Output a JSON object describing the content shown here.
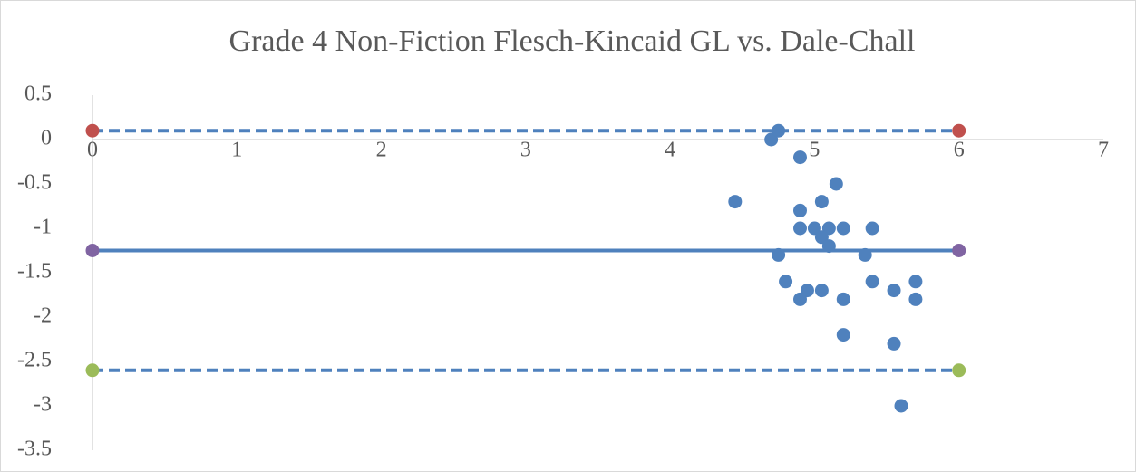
{
  "chart_data": {
    "type": "scatter",
    "title": "Grade 4 Non-Fiction Flesch-Kincaid GL vs. Dale-Chall",
    "xlim": [
      0,
      7
    ],
    "xticks": [
      0,
      1,
      2,
      3,
      4,
      5,
      6,
      7
    ],
    "ylim": [
      -3.5,
      0.5
    ],
    "yticks": [
      0.5,
      0,
      -0.5,
      -1,
      -1.5,
      -2,
      -2.5,
      -3,
      -3.5
    ],
    "series": [
      {
        "color": "#4f81bd",
        "x": [
          4.45,
          4.7,
          4.75,
          4.9,
          4.9,
          5.05,
          5.15,
          4.9,
          5.0,
          5.1,
          5.2,
          5.4,
          5.05,
          5.1,
          4.75,
          5.35,
          4.8,
          5.4,
          5.7,
          4.95,
          5.05,
          5.55,
          4.9,
          5.2,
          5.7,
          5.2,
          5.55,
          5.6
        ],
        "values": [
          -0.7,
          0,
          0.1,
          -0.2,
          -0.8,
          -0.7,
          -0.5,
          -1,
          -1,
          -1,
          -1,
          -1,
          -1.1,
          -1.2,
          -1.3,
          -1.3,
          -1.6,
          -1.6,
          -1.6,
          -1.7,
          -1.7,
          -1.7,
          -1.8,
          -1.8,
          -1.8,
          -2.2,
          -2.3,
          -3.0
        ]
      },
      {
        "color": "#c0504d",
        "line_color": "#4f81bd",
        "line": "dashed",
        "x": [
          0,
          6
        ],
        "values": [
          0.1,
          0.1
        ]
      },
      {
        "color": "#8064a2",
        "line_color": "#4f81bd",
        "line": "solid",
        "x": [
          0,
          6
        ],
        "values": [
          -1.25,
          -1.25
        ]
      },
      {
        "color": "#9bbb59",
        "line_color": "#4f81bd",
        "line": "dashed",
        "x": [
          0,
          6
        ],
        "values": [
          -2.6,
          -2.6
        ]
      }
    ]
  }
}
